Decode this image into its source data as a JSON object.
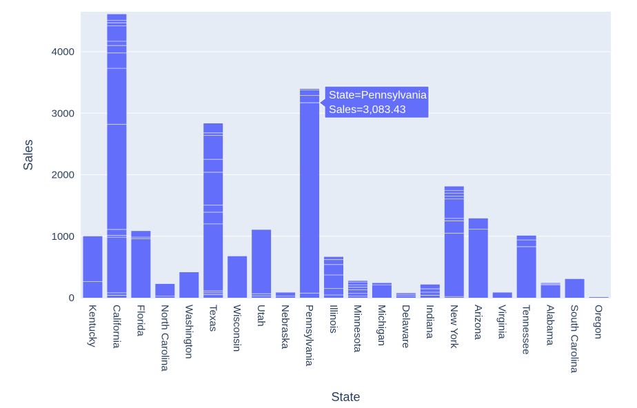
{
  "chart_data": {
    "type": "bar",
    "xlabel": "State",
    "ylabel": "Sales",
    "ylim": [
      0,
      4650
    ],
    "yticks": [
      0,
      1000,
      2000,
      3000,
      4000
    ],
    "ytick_labels": [
      "0",
      "1000",
      "2000",
      "3000",
      "4000"
    ],
    "grid": true,
    "bar_color": "#636efa",
    "plot_bg": "#e5ecf6",
    "categories": [
      "Kentucky",
      "California",
      "Florida",
      "North Carolina",
      "Washington",
      "Texas",
      "Wisconsin",
      "Utah",
      "Nebraska",
      "Pennsylvania",
      "Illinois",
      "Minnesota",
      "Michigan",
      "Delaware",
      "Indiana",
      "New York",
      "Arizona",
      "Virginia",
      "Tennessee",
      "Alabama",
      "South Carolina",
      "Oregon"
    ],
    "values": [
      1000,
      4610,
      1085,
      225,
      415,
      2835,
      675,
      1105,
      85,
      3395,
      665,
      275,
      240,
      75,
      215,
      1810,
      1290,
      85,
      1010,
      240,
      305,
      10
    ],
    "segment_boundaries": [
      [
        265
      ],
      [
        40,
        80,
        985,
        1015,
        1110,
        2820,
        3730,
        3980,
        4100,
        4170,
        4420,
        4470,
        4510
      ],
      [
        960,
        985
      ],
      [
        25
      ],
      [],
      [
        50,
        80,
        110,
        1200,
        1390,
        1505,
        2040,
        2250,
        2640,
        2680
      ],
      [],
      [
        30,
        65
      ],
      [
        25
      ],
      [
        75,
        3170,
        3290,
        3380
      ],
      [
        45,
        150,
        370,
        540,
        620
      ],
      [
        25,
        70,
        130,
        170,
        210,
        255
      ],
      [
        210
      ],
      [
        25,
        55
      ],
      [
        40,
        90,
        145
      ],
      [
        20,
        1050,
        1250,
        1290,
        1605,
        1650,
        1700,
        1745
      ],
      [
        1115
      ],
      [],
      [
        830,
        940
      ],
      [
        210,
        225
      ],
      [],
      []
    ],
    "tooltip": {
      "category": "Pennsylvania",
      "line1": "State=Pennsylvania",
      "line2": "Sales=3,083.43",
      "anchor_value": 3170
    }
  }
}
